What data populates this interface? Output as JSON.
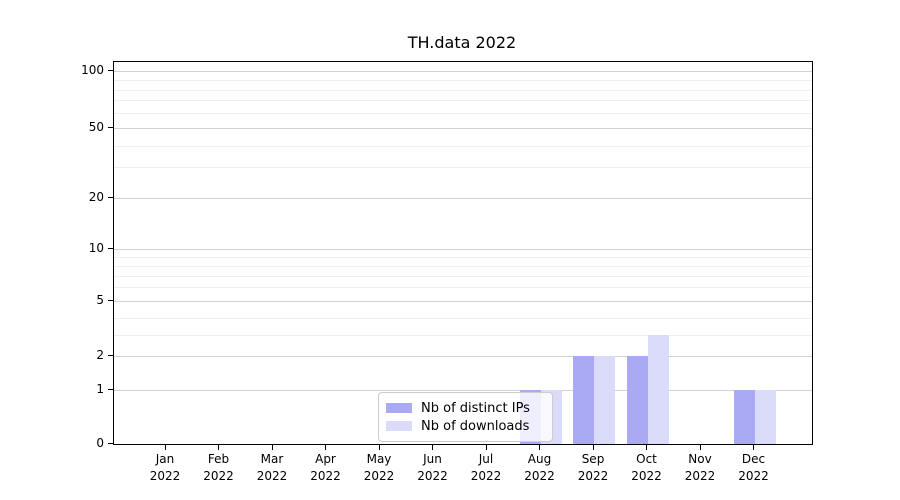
{
  "chart_data": {
    "type": "bar",
    "title": "TH.data 2022",
    "categories": [
      "Jan 2022",
      "Feb 2022",
      "Mar 2022",
      "Apr 2022",
      "May 2022",
      "Jun 2022",
      "Jul 2022",
      "Aug 2022",
      "Sep 2022",
      "Oct 2022",
      "Nov 2022",
      "Dec 2022"
    ],
    "x_tick_months": [
      "Jan",
      "Feb",
      "Mar",
      "Apr",
      "May",
      "Jun",
      "Jul",
      "Aug",
      "Sep",
      "Oct",
      "Nov",
      "Dec"
    ],
    "x_tick_year": "2022",
    "series": [
      {
        "name": "Nb of distinct IPs",
        "color": "#a9a9f4",
        "values": [
          0,
          0,
          0,
          0,
          0,
          0,
          0,
          1,
          2,
          2,
          0,
          1
        ]
      },
      {
        "name": "Nb of downloads",
        "color": "#dadaf9",
        "values": [
          0,
          0,
          0,
          0,
          0,
          0,
          0,
          1,
          2,
          3,
          0,
          1
        ]
      }
    ],
    "xlabel": "",
    "ylabel": "",
    "y_axis_ticks": [
      0,
      1,
      2,
      5,
      10,
      20,
      50,
      100
    ],
    "y_minor_gridlines": [
      3,
      4,
      6,
      7,
      8,
      9,
      30,
      40,
      60,
      70,
      80,
      90
    ],
    "scale": "symlog",
    "ylim": [
      0,
      115
    ],
    "grid": "horizontal major+minor",
    "legend_position": "lower center inside plot",
    "colors": {
      "major_gridline": "#d2d2d2",
      "minor_gridline": "#efefef",
      "axis": "#000000",
      "background": "#ffffff"
    }
  }
}
